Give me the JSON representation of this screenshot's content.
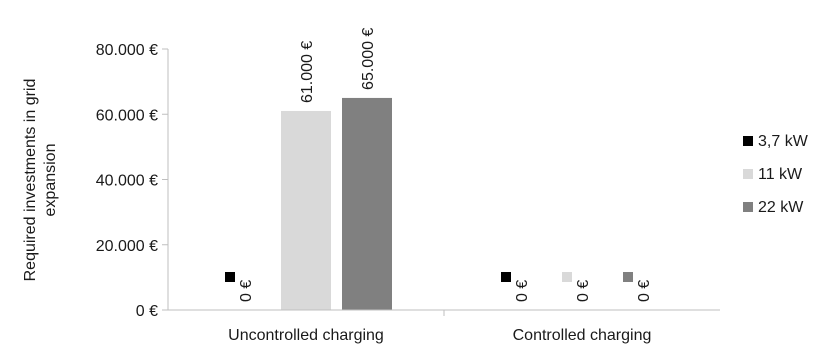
{
  "chart_data": {
    "type": "bar",
    "ylabel_lines": [
      "Required investments in grid",
      "expansion"
    ],
    "categories": [
      "Uncontrolled charging",
      "Controlled charging"
    ],
    "series": [
      {
        "name": "3,7 kW",
        "color": "#000000",
        "values": [
          0,
          0
        ],
        "labels": [
          "0 €",
          "0 €"
        ]
      },
      {
        "name": "11 kW",
        "color": "#d9d9d9",
        "values": [
          61000,
          0
        ],
        "labels": [
          "61.000 €",
          "0 €"
        ]
      },
      {
        "name": "22 kW",
        "color": "#808080",
        "values": [
          65000,
          0
        ],
        "labels": [
          "65.000 €",
          "0 €"
        ]
      }
    ],
    "yticks": [
      {
        "value": 0,
        "label": "0 €"
      },
      {
        "value": 20000,
        "label": "20.000 €"
      },
      {
        "value": 40000,
        "label": "40.000 €"
      },
      {
        "value": 60000,
        "label": "60.000 €"
      },
      {
        "value": 80000,
        "label": "80.000 €"
      }
    ],
    "ylim": [
      0,
      80000
    ],
    "grid": false,
    "legend_position": "right"
  }
}
